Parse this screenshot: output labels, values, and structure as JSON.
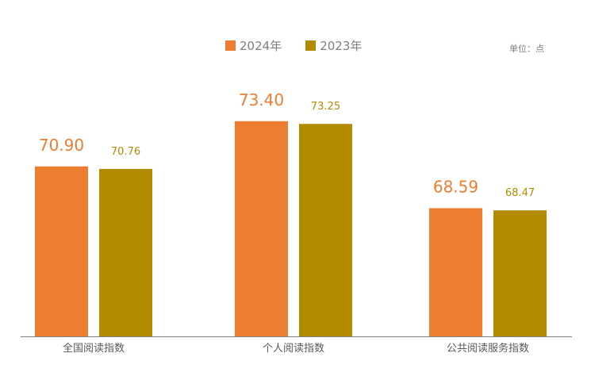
{
  "colors": {
    "series_2024": "#ed7d31",
    "series_2023": "#b38b00",
    "axis": "#7f7f7f",
    "text": "#595959"
  },
  "unit_label": "单位：点",
  "chart_data": {
    "type": "bar",
    "title": "",
    "xlabel": "",
    "ylabel": "",
    "categories": [
      "全国阅读指数",
      "个人阅读指数",
      "公共阅读服务指数"
    ],
    "series": [
      {
        "name": "2024年",
        "values": [
          70.9,
          73.4,
          68.59
        ],
        "color": "#ed7d31",
        "labels": [
          "70.90",
          "73.40",
          "68.59"
        ]
      },
      {
        "name": "2023年",
        "values": [
          70.76,
          73.25,
          68.47
        ],
        "color": "#b38b00",
        "labels": [
          "70.76",
          "73.25",
          "68.47"
        ]
      }
    ],
    "ylim": [
      61.5,
      74.4
    ],
    "grid": false,
    "legend_position": "top"
  }
}
